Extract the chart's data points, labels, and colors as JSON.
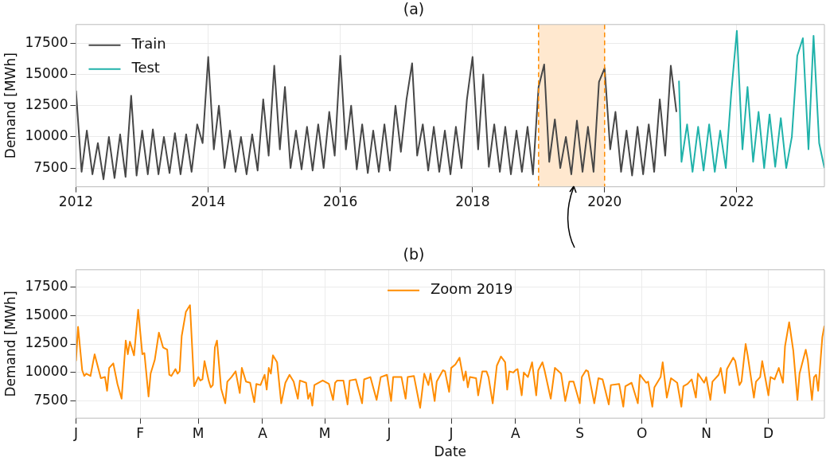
{
  "chart_data": [
    {
      "type": "line",
      "title": "(a)",
      "ylabel": "Demand [MWh]",
      "xlim": [
        "2012-01-01",
        "2023-04-30"
      ],
      "ylim": [
        6000,
        19000
      ],
      "xticks": [
        "2012",
        "2014",
        "2016",
        "2018",
        "2020",
        "2022"
      ],
      "yticks": [
        7500,
        10000,
        12500,
        15000,
        17500
      ],
      "grid": true,
      "legend": "top left",
      "bands": [
        {
          "axis": "x",
          "from": "2019-01-01",
          "to": "2020-01-01",
          "color": "#ffe8cf"
        }
      ],
      "ref_lines": [
        {
          "axis": "x",
          "value": "2019-01-01",
          "color": "#ff8c00",
          "line_style": "dashed"
        },
        {
          "axis": "x",
          "value": "2020-01-01",
          "color": "#ff8c00",
          "line_style": "dashed"
        }
      ],
      "series": [
        {
          "name": "Train",
          "color": "#474747",
          "x": [
            "2012-01",
            "2012-02",
            "2012-03",
            "2012-04",
            "2012-05",
            "2012-06",
            "2012-07",
            "2012-08",
            "2012-09",
            "2012-10",
            "2012-11",
            "2012-12",
            "2013-01",
            "2013-02",
            "2013-03",
            "2013-04",
            "2013-05",
            "2013-06",
            "2013-07",
            "2013-08",
            "2013-09",
            "2013-10",
            "2013-11",
            "2013-12",
            "2014-01",
            "2014-02",
            "2014-03",
            "2014-04",
            "2014-05",
            "2014-06",
            "2014-07",
            "2014-08",
            "2014-09",
            "2014-10",
            "2014-11",
            "2014-12",
            "2015-01",
            "2015-02",
            "2015-03",
            "2015-04",
            "2015-05",
            "2015-06",
            "2015-07",
            "2015-08",
            "2015-09",
            "2015-10",
            "2015-11",
            "2015-12",
            "2016-01",
            "2016-02",
            "2016-03",
            "2016-04",
            "2016-05",
            "2016-06",
            "2016-07",
            "2016-08",
            "2016-09",
            "2016-10",
            "2016-11",
            "2016-12",
            "2017-01",
            "2017-02",
            "2017-03",
            "2017-04",
            "2017-05",
            "2017-06",
            "2017-07",
            "2017-08",
            "2017-09",
            "2017-10",
            "2017-11",
            "2017-12",
            "2018-01",
            "2018-02",
            "2018-03",
            "2018-04",
            "2018-05",
            "2018-06",
            "2018-07",
            "2018-08",
            "2018-09",
            "2018-10",
            "2018-11",
            "2018-12",
            "2019-01",
            "2019-02",
            "2019-03",
            "2019-04",
            "2019-05",
            "2019-06",
            "2019-07",
            "2019-08",
            "2019-09",
            "2019-10",
            "2019-11",
            "2019-12",
            "2020-01",
            "2020-02",
            "2020-03",
            "2020-04",
            "2020-05",
            "2020-06",
            "2020-07",
            "2020-08",
            "2020-09",
            "2020-10",
            "2020-11",
            "2020-12",
            "2021-01",
            "2021-02"
          ],
          "values": [
            13700,
            7200,
            10500,
            7000,
            9500,
            6600,
            10000,
            6700,
            10200,
            6800,
            13300,
            6900,
            10500,
            7000,
            10600,
            7000,
            10000,
            7100,
            10300,
            7000,
            10200,
            7200,
            11000,
            9500,
            16400,
            9000,
            12500,
            7500,
            10500,
            7200,
            10000,
            7000,
            10200,
            7300,
            13000,
            8500,
            15700,
            9000,
            14000,
            7500,
            10500,
            7400,
            10800,
            7300,
            11000,
            7500,
            12000,
            8500,
            16500,
            9000,
            12500,
            7400,
            11000,
            7100,
            10500,
            7200,
            11000,
            7300,
            12500,
            8800,
            13000,
            15900,
            8500,
            11000,
            7300,
            10800,
            7200,
            10500,
            7000,
            10800,
            7500,
            13000,
            16400,
            9000,
            15000,
            7600,
            11000,
            7200,
            10800,
            7000,
            10500,
            7200,
            10800,
            7000,
            14000,
            15800,
            8000,
            11400,
            7500,
            10000,
            7000,
            11300,
            7200,
            10800,
            7200,
            14400,
            15500,
            9000,
            12000,
            7200,
            10500,
            6900,
            10800,
            7000,
            11000,
            7200,
            13000,
            8500,
            15700,
            12000
          ]
        },
        {
          "name": "Test",
          "color": "#20b2aa",
          "x": [
            "2021-02-15",
            "2021-03",
            "2021-04",
            "2021-05",
            "2021-06",
            "2021-07",
            "2021-08",
            "2021-09",
            "2021-10",
            "2021-11",
            "2021-12",
            "2022-01",
            "2022-02",
            "2022-03",
            "2022-04",
            "2022-05",
            "2022-06",
            "2022-07",
            "2022-08",
            "2022-09",
            "2022-10",
            "2022-11",
            "2022-12",
            "2023-01",
            "2023-02",
            "2023-03",
            "2023-04",
            "2023-04-30"
          ],
          "values": [
            14500,
            8000,
            11000,
            7200,
            10800,
            7300,
            11000,
            7200,
            10500,
            7500,
            13500,
            18500,
            9000,
            14000,
            8000,
            12000,
            7500,
            11800,
            7600,
            11500,
            7500,
            10000,
            16500,
            17900,
            9000,
            18100,
            9500,
            7500
          ]
        }
      ]
    },
    {
      "type": "line",
      "title": "(b)",
      "ylabel": "Demand [MWh]",
      "xlabel": "Date",
      "ylim": [
        6000,
        19000
      ],
      "categories": [
        "J",
        null,
        null,
        null,
        null,
        null,
        null,
        null,
        null,
        null,
        null,
        null,
        null,
        null,
        null,
        null,
        null,
        null,
        null,
        null,
        null,
        null,
        null,
        null,
        null,
        null,
        null,
        null,
        null,
        null,
        null,
        "F",
        null,
        null,
        null,
        null,
        null,
        null,
        null,
        null,
        null,
        null,
        null,
        null,
        null,
        null,
        null,
        null,
        null,
        null,
        null,
        null,
        null,
        null,
        null,
        null,
        null,
        null,
        null,
        "M",
        null,
        null,
        null,
        null,
        null,
        null,
        null,
        null,
        null,
        null,
        null,
        null,
        null,
        null,
        null,
        null,
        null,
        null,
        null,
        null,
        null,
        null,
        null,
        null,
        null,
        null,
        null,
        null,
        null,
        null,
        "A",
        null,
        null,
        null,
        null,
        null,
        null,
        null,
        null,
        null,
        null,
        null,
        null,
        null,
        null,
        null,
        null,
        null,
        null,
        null,
        null,
        null,
        null,
        null,
        null,
        null,
        null,
        null,
        null,
        null,
        "M",
        null,
        null,
        null,
        null,
        null,
        null,
        null,
        null,
        null,
        null,
        null,
        null,
        null,
        null,
        null,
        null,
        null,
        null,
        null,
        null,
        null,
        null,
        null,
        null,
        null,
        null,
        null,
        null,
        null,
        null,
        "J",
        null,
        null,
        null,
        null,
        null,
        null,
        null,
        null,
        null,
        null,
        null,
        null,
        null,
        null,
        null,
        null,
        null,
        null,
        null,
        null,
        null,
        null,
        null,
        null,
        null,
        null,
        null,
        null,
        null,
        "J",
        null,
        null,
        null,
        null,
        null,
        null,
        null,
        null,
        null,
        null,
        null,
        null,
        null,
        null,
        null,
        null,
        null,
        null,
        null,
        null,
        null,
        null,
        null,
        null,
        null,
        null,
        null,
        null,
        null,
        null,
        "A",
        null,
        null,
        null,
        null,
        null,
        null,
        null,
        null,
        null,
        null,
        null,
        null,
        null,
        null,
        null,
        null,
        null,
        null,
        null,
        null,
        null,
        null,
        null,
        null,
        null,
        null,
        null,
        null,
        null,
        null,
        "S",
        null,
        null,
        null,
        null,
        null,
        null,
        null,
        null,
        null,
        null,
        null,
        null,
        null,
        null,
        null,
        null,
        null,
        null,
        null,
        null,
        null,
        null,
        null,
        null,
        null,
        null,
        null,
        null,
        null,
        "O",
        null,
        null,
        null,
        null,
        null,
        null,
        null,
        null,
        null,
        null,
        null,
        null,
        null,
        null,
        null,
        null,
        null,
        null,
        null,
        null,
        null,
        null,
        null,
        null,
        null,
        null,
        null,
        null,
        null,
        null,
        "N",
        null,
        null,
        null,
        null,
        null,
        null,
        null,
        null,
        null,
        null,
        null,
        null,
        null,
        null,
        null,
        null,
        null,
        null,
        null,
        null,
        null,
        null,
        null,
        null,
        null,
        null,
        null,
        null,
        null,
        "D",
        null,
        null,
        null,
        null,
        null,
        null,
        null,
        null,
        null,
        null,
        null,
        null,
        null,
        null,
        null,
        null,
        null,
        null,
        null,
        null,
        null,
        null,
        null,
        null,
        null,
        null,
        null
      ],
      "yticks": [
        7500,
        10000,
        12500,
        15000,
        17500
      ],
      "grid": true,
      "legend": "top",
      "series": [
        {
          "name": "Zoom 2019",
          "color": "#ff8c00",
          "values": [
            11000,
            14000,
            null,
            10200,
            9700,
            9900,
            null,
            9700,
            null,
            11600,
            10900,
            null,
            9500,
            null,
            9600,
            8400,
            10400,
            null,
            10800,
            null,
            9000,
            null,
            7700,
            null,
            12800,
            11600,
            12700,
            null,
            11500,
            null,
            15500,
            null,
            11600,
            11700,
            null,
            7900,
            9900,
            null,
            11100,
            null,
            13500,
            null,
            12200,
            null,
            12000,
            9800,
            9700,
            null,
            10300,
            9900,
            10100,
            13200,
            null,
            15300,
            null,
            15900,
            null,
            8800,
            null,
            9600,
            9300,
            9400,
            11000,
            null,
            9300,
            8700,
            8900,
            12200,
            12800,
            null,
            8600,
            null,
            7300,
            9200,
            null,
            9600,
            null,
            10100,
            null,
            8200,
            10400,
            null,
            9200,
            null,
            9100,
            null,
            7400,
            9000,
            null,
            8900,
            null,
            9800,
            8500,
            10400,
            9900,
            11500,
            null,
            10900,
            null,
            7300,
            null,
            9100,
            null,
            9800,
            null,
            9200,
            null,
            7700,
            9300,
            null,
            null,
            9100,
            7700,
            8200,
            7100,
            8900,
            null,
            null,
            null,
            9300,
            null,
            null,
            9000,
            null,
            7600,
            9100,
            9300,
            null,
            null,
            9300,
            null,
            7200,
            9300,
            null,
            null,
            9400,
            null,
            null,
            7300,
            9400,
            null,
            null,
            9600,
            null,
            null,
            7600,
            null,
            9600,
            null,
            null,
            9800,
            null,
            7500,
            9600,
            null,
            null,
            null,
            9600,
            null,
            7700,
            9600,
            null,
            null,
            9700,
            null,
            null,
            6900,
            null,
            9900,
            null,
            8900,
            9900,
            null,
            7500,
            9200,
            null,
            null,
            10200,
            10100,
            null,
            8300,
            10400,
            null,
            10700,
            null,
            11300,
            null,
            9300,
            10100,
            8700,
            9600,
            null,
            null,
            9500,
            8000,
            null,
            10100,
            null,
            10100,
            9600,
            null,
            7300,
            null,
            10600,
            null,
            11400,
            null,
            10900,
            8500,
            10100,
            null,
            10000,
            10200,
            10300,
            null,
            8000,
            10000,
            null,
            9600,
            null,
            10900,
            null,
            8000,
            10200,
            null,
            10900,
            10200,
            null,
            null,
            7700,
            null,
            10400,
            null,
            null,
            9900,
            null,
            7500,
            null,
            9200,
            null,
            9200,
            null,
            null,
            7300,
            9600,
            null,
            10200,
            10100,
            null,
            null,
            7300,
            null,
            9500,
            null,
            9400,
            null,
            null,
            7200,
            8900,
            null,
            null,
            null,
            9000,
            null,
            7000,
            8800,
            null,
            null,
            9100,
            null,
            null,
            7300,
            9800,
            null,
            null,
            9100,
            9200,
            null,
            7000,
            8700,
            null,
            null,
            9600,
            10900,
            null,
            7800,
            null,
            9500,
            null,
            null,
            9100,
            null,
            7000,
            8800,
            null,
            9000,
            null,
            9400,
            null,
            7800,
            9900,
            null,
            null,
            9100,
            9600,
            null,
            7600,
            9200,
            null,
            null,
            9800,
            10400,
            null,
            8200,
            10300,
            null,
            null,
            11300,
            11000,
            null,
            8900,
            9200,
            null,
            12500,
            11500,
            null,
            null,
            7800,
            9200,
            null,
            9600,
            11000,
            null,
            null,
            8000,
            9600,
            null,
            9400,
            null,
            10400,
            null,
            9100,
            12300,
            null,
            14400,
            null,
            11900,
            null,
            7600,
            9900,
            null,
            null,
            12000,
            11100,
            null,
            7600,
            9600,
            9800,
            8400,
            null,
            13100,
            14100
          ]
        }
      ]
    }
  ]
}
